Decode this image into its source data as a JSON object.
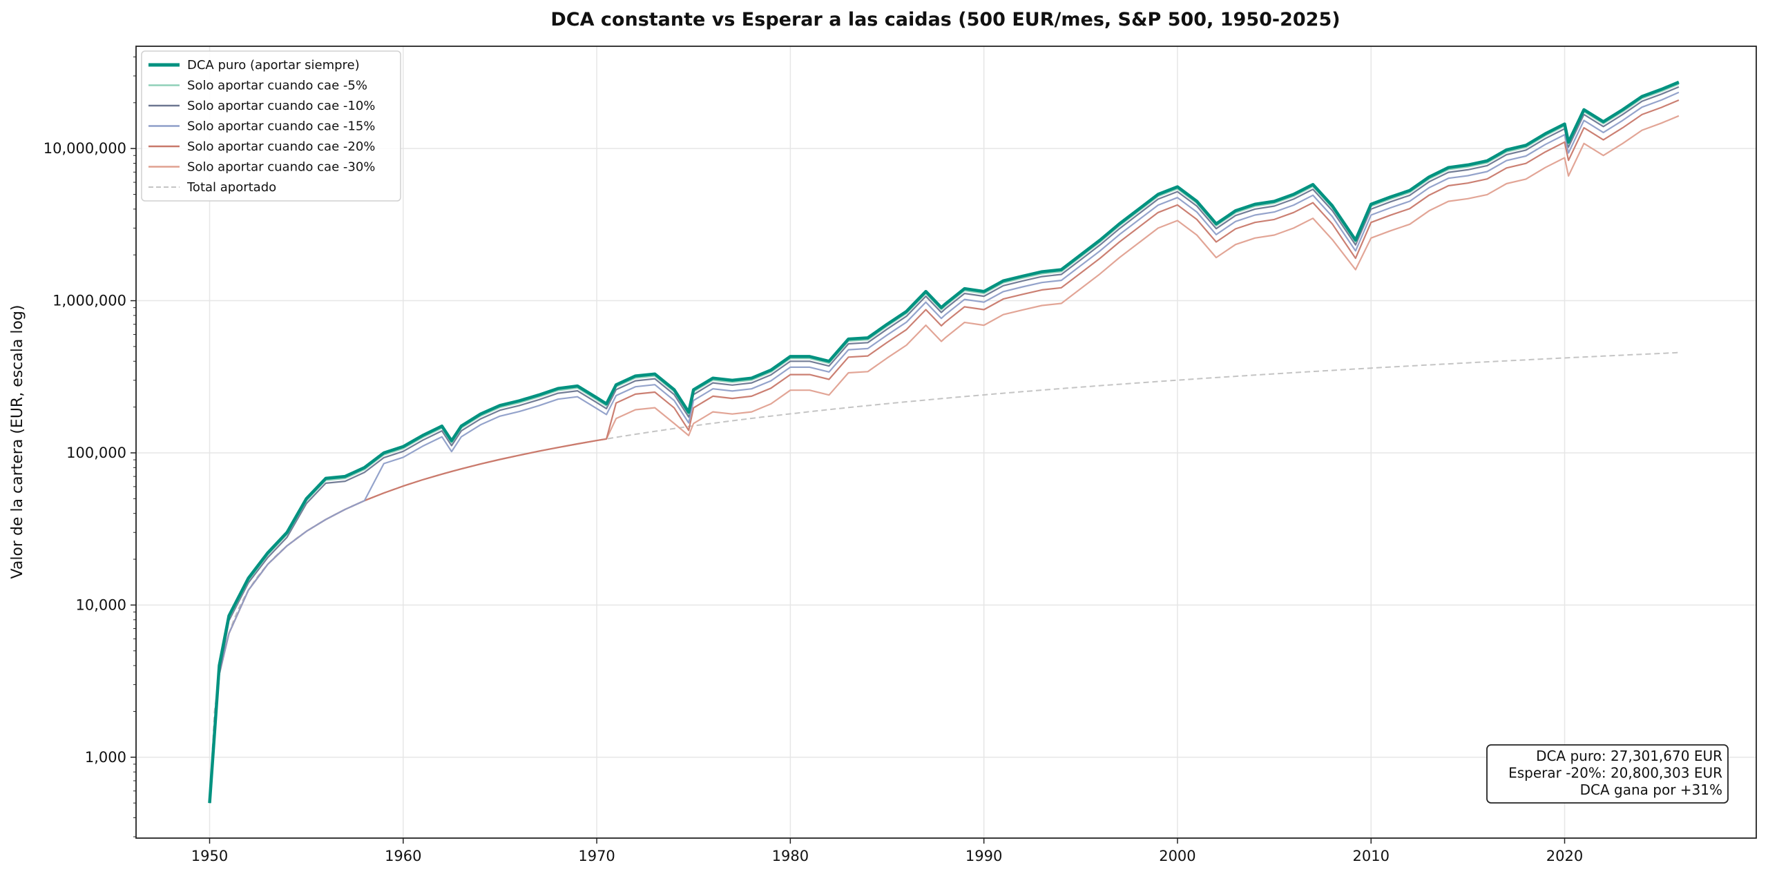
{
  "chart_data": {
    "type": "line",
    "title": "DCA constante vs Esperar a las caidas (500 EUR/mes, S&P 500, 1950-2025)",
    "xlabel": "",
    "ylabel": "Valor de la cartera (EUR, escala log)",
    "yscale": "log",
    "xlim": [
      1946.2,
      2029.9
    ],
    "ylim": [
      294,
      47000000
    ],
    "xticks": [
      1950,
      1960,
      1970,
      1980,
      1990,
      2000,
      2010,
      2020
    ],
    "xtick_labels": [
      "1950",
      "1960",
      "1970",
      "1980",
      "1990",
      "2000",
      "2010",
      "2020"
    ],
    "yticks": [
      1000,
      10000,
      100000,
      1000000,
      10000000
    ],
    "ytick_labels": [
      "1,000",
      "10,000",
      "100,000",
      "1,000,000",
      "10,000,000"
    ],
    "grid": true,
    "legend_position": "top-left",
    "x": [
      1950,
      1950.5,
      1951,
      1952,
      1953,
      1954,
      1955,
      1956,
      1957,
      1958,
      1959,
      1960,
      1961,
      1962,
      1962.5,
      1963,
      1964,
      1965,
      1966,
      1967,
      1968,
      1969,
      1970,
      1970.5,
      1971,
      1972,
      1973,
      1974,
      1974.75,
      1975,
      1976,
      1977,
      1978,
      1979,
      1980,
      1981,
      1982,
      1983,
      1984,
      1985,
      1986,
      1987,
      1987.8,
      1988,
      1989,
      1990,
      1991,
      1992,
      1993,
      1994,
      1995,
      1996,
      1997,
      1998,
      1999,
      2000,
      2001,
      2002,
      2003,
      2004,
      2005,
      2006,
      2007,
      2008,
      2009.2,
      2010,
      2011,
      2012,
      2013,
      2014,
      2015,
      2016,
      2017,
      2018,
      2019,
      2020,
      2020.2,
      2021,
      2022,
      2023,
      2024,
      2025,
      2025.9
    ],
    "series": [
      {
        "name": "Solo aportar cuando cae -30%",
        "color": "#e0a090",
        "width": 2.2,
        "dash": "",
        "values": [
          500,
          3500,
          6500,
          12500,
          18500,
          24500,
          30500,
          36500,
          42500,
          48500,
          54500,
          60500,
          66500,
          72500,
          75500,
          78500,
          84500,
          90500,
          96500,
          102500,
          108500,
          114500,
          120500,
          123500,
          168000,
          192000,
          198000,
          156000,
          130000,
          156000,
          186000,
          180000,
          186000,
          210000,
          258000,
          258000,
          240000,
          336000,
          342000,
          420000,
          510000,
          690000,
          540000,
          570000,
          720000,
          690000,
          810000,
          870000,
          930000,
          960000,
          1200000,
          1500000,
          1920000,
          2400000,
          3000000,
          3360000,
          2700000,
          1920000,
          2340000,
          2580000,
          2700000,
          3000000,
          3480000,
          2520000,
          1600000,
          2580000,
          2880000,
          3180000,
          3900000,
          4500000,
          4680000,
          4980000,
          5880000,
          6300000,
          7500000,
          8700000,
          6600000,
          10800000,
          9000000,
          10800000,
          13200000,
          14700000,
          16400000
        ]
      },
      {
        "name": "Solo aportar cuando cae -20%",
        "color": "#c8786a",
        "width": 2.2,
        "dash": "",
        "values": [
          500,
          3500,
          6500,
          12500,
          18500,
          24500,
          30500,
          36500,
          42500,
          48500,
          54500,
          60500,
          66500,
          72500,
          75500,
          78500,
          84500,
          90500,
          96500,
          102500,
          108500,
          114500,
          120500,
          123500,
          212800,
          243200,
          250800,
          197600,
          140600,
          197600,
          235600,
          228000,
          235600,
          266000,
          326800,
          326800,
          304000,
          425600,
          433200,
          532000,
          646000,
          874000,
          684000,
          722000,
          912000,
          874000,
          1026000,
          1102000,
          1178000,
          1216000,
          1520000,
          1900000,
          2432000,
          3040000,
          3800000,
          4256000,
          3420000,
          2432000,
          2964000,
          3268000,
          3420000,
          3800000,
          4408000,
          3192000,
          1900000,
          3268000,
          3648000,
          4028000,
          4940000,
          5700000,
          5928000,
          6308000,
          7448000,
          7980000,
          9500000,
          11020000,
          8360000,
          13680000,
          11400000,
          13680000,
          16720000,
          18620000,
          20800303
        ]
      },
      {
        "name": "Solo aportar cuando cae -15%",
        "color": "#8e9ec8",
        "width": 2.2,
        "dash": "",
        "values": [
          500,
          3500,
          6500,
          12500,
          18500,
          24500,
          30500,
          36500,
          42500,
          48500,
          85000,
          93500,
          110500,
          127500,
          102000,
          127500,
          153000,
          174300,
          187000,
          204000,
          225300,
          233800,
          195500,
          178500,
          238000,
          272000,
          280500,
          221000,
          157300,
          221000,
          263500,
          255000,
          263500,
          297500,
          365500,
          365500,
          340000,
          476000,
          484500,
          595000,
          722500,
          977500,
          765000,
          807500,
          1020000,
          977500,
          1147500,
          1232500,
          1317500,
          1360000,
          1700000,
          2125000,
          2720000,
          3400000,
          4250000,
          4760000,
          3825000,
          2720000,
          3315000,
          3655000,
          3825000,
          4250000,
          4930000,
          3570000,
          2125000,
          3655000,
          4080000,
          4505000,
          5525000,
          6375000,
          6630000,
          7055000,
          8330000,
          8925000,
          10625000,
          12325000,
          9350000,
          15300000,
          12750000,
          15300000,
          18700000,
          20825000,
          23400000
        ]
      },
      {
        "name": "Solo aportar cuando cae -10%",
        "color": "#6c7690",
        "width": 2.2,
        "dash": "",
        "values": [
          500,
          3500,
          7900,
          14000,
          20500,
          27900,
          46500,
          63200,
          65100,
          74400,
          93000,
          102300,
          120900,
          139500,
          111600,
          139500,
          167400,
          190700,
          204600,
          223200,
          246500,
          255800,
          213900,
          195300,
          260400,
          297600,
          306900,
          241800,
          172100,
          241800,
          288300,
          279000,
          288300,
          325500,
          399900,
          399900,
          372000,
          520800,
          530100,
          651000,
          790500,
          1069500,
          837000,
          883500,
          1116000,
          1069500,
          1255500,
          1348500,
          1441500,
          1488000,
          1860000,
          2325000,
          2976000,
          3720000,
          4650000,
          5208000,
          4185000,
          2976000,
          3627000,
          3999000,
          4185000,
          4650000,
          5394000,
          3906000,
          2325000,
          3999000,
          4464000,
          4929000,
          6045000,
          6975000,
          7254000,
          7719000,
          9114000,
          9765000,
          11625000,
          13485000,
          10230000,
          16740000,
          13950000,
          16740000,
          20460000,
          22785000,
          25390000
        ]
      },
      {
        "name": "Solo aportar cuando cae -5%",
        "color": "#8fd0b8",
        "width": 2.2,
        "dash": "",
        "values": [
          500,
          3900,
          8200,
          14500,
          21300,
          29100,
          48500,
          66000,
          67900,
          77600,
          97000,
          106700,
          126100,
          145500,
          116400,
          145500,
          174600,
          198900,
          213400,
          232800,
          257100,
          266800,
          223100,
          203700,
          271600,
          310400,
          320100,
          252200,
          179500,
          252200,
          300700,
          291000,
          300700,
          339500,
          417100,
          417100,
          388000,
          543200,
          552900,
          679000,
          824500,
          1115500,
          873000,
          921500,
          1164000,
          1115500,
          1309500,
          1406500,
          1503500,
          1552000,
          1940000,
          2425000,
          3104000,
          3880000,
          4850000,
          5432000,
          4365000,
          3104000,
          3783000,
          4171000,
          4365000,
          4850000,
          5626000,
          4074000,
          2425000,
          4171000,
          4656000,
          5141000,
          6305000,
          7275000,
          7566000,
          8051000,
          9506000,
          10185000,
          12125000,
          14065000,
          10670000,
          17460000,
          14550000,
          17460000,
          21340000,
          23765000,
          26480000
        ]
      },
      {
        "name": "DCA puro (aportar siempre)",
        "color": "#009280",
        "width": 4.5,
        "dash": "",
        "values": [
          500,
          4000,
          8500,
          15000,
          22000,
          30000,
          50000,
          68000,
          70000,
          80000,
          100000,
          110000,
          130000,
          150000,
          120000,
          150000,
          180000,
          205000,
          220000,
          240000,
          265000,
          275000,
          230000,
          210000,
          280000,
          320000,
          330000,
          260000,
          185000,
          260000,
          310000,
          300000,
          310000,
          350000,
          430000,
          430000,
          400000,
          560000,
          570000,
          700000,
          850000,
          1150000,
          900000,
          950000,
          1200000,
          1150000,
          1350000,
          1450000,
          1550000,
          1600000,
          2000000,
          2500000,
          3200000,
          4000000,
          5000000,
          5600000,
          4500000,
          3200000,
          3900000,
          4300000,
          4500000,
          5000000,
          5800000,
          4200000,
          2500000,
          4300000,
          4800000,
          5300000,
          6500000,
          7500000,
          7800000,
          8300000,
          9800000,
          10500000,
          12500000,
          14500000,
          11000000,
          18000000,
          15000000,
          18000000,
          22000000,
          24500000,
          27301670
        ]
      }
    ],
    "total_aportado": {
      "name": "Total aportado",
      "color": "#c4c4c4",
      "dash": "dashed",
      "x": [
        1950,
        1955,
        1960,
        1965,
        1970,
        1975,
        1980,
        1985,
        1990,
        1995,
        2000,
        2005,
        2010,
        2015,
        2020,
        2025,
        2025.9
      ],
      "values": [
        500,
        30500,
        60500,
        90500,
        120500,
        150500,
        180500,
        210500,
        240500,
        270500,
        300500,
        330500,
        360500,
        390500,
        420500,
        450500,
        456000
      ]
    },
    "legend_order": [
      "DCA puro (aportar siempre)",
      "Solo aportar cuando cae -5%",
      "Solo aportar cuando cae -10%",
      "Solo aportar cuando cae -15%",
      "Solo aportar cuando cae -20%",
      "Solo aportar cuando cae -30%",
      "Total aportado"
    ],
    "annotation": {
      "lines": [
        "DCA puro: 27,301,670 EUR",
        "Esperar -20%: 20,800,303 EUR",
        "DCA gana por +31%"
      ],
      "position": "bottom-right"
    }
  }
}
